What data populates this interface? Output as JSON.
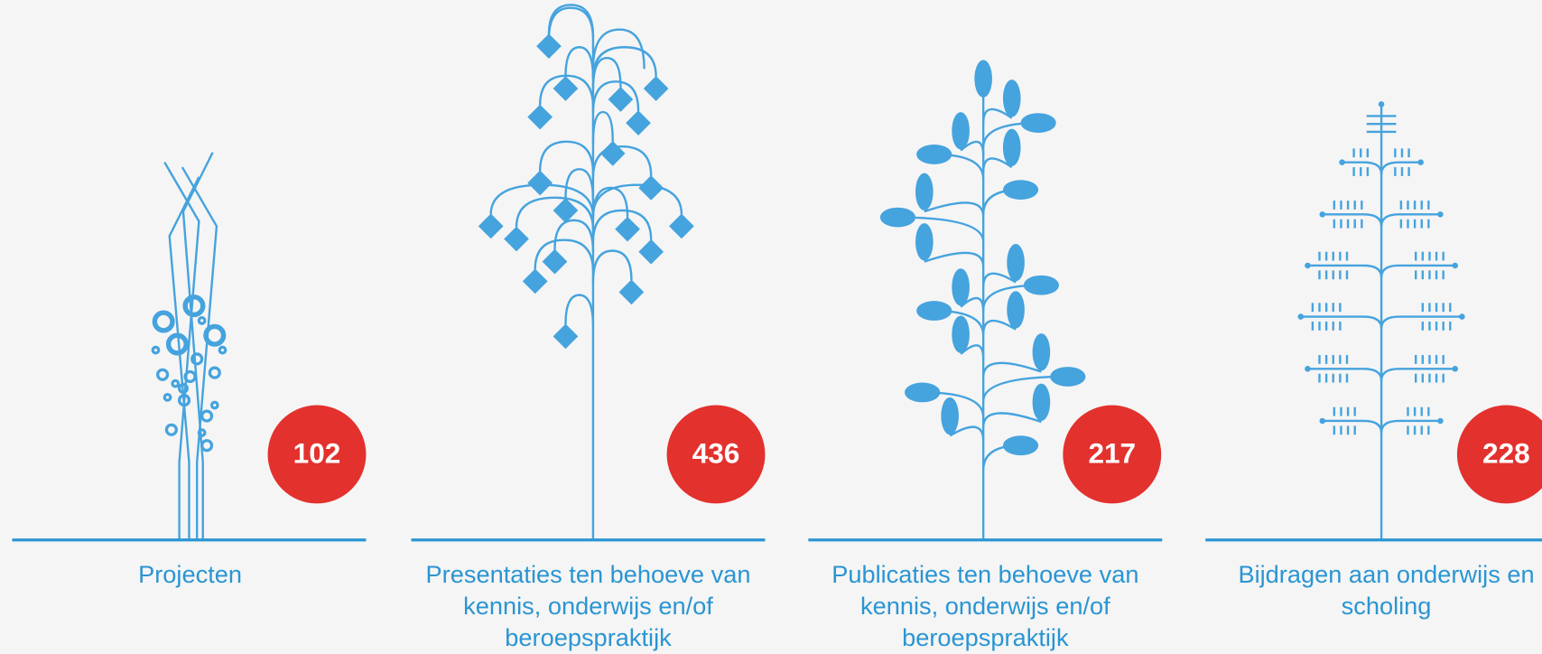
{
  "items": [
    {
      "number": 102,
      "caption": [
        "Projecten"
      ]
    },
    {
      "number": 436,
      "caption": [
        "Presentaties ten behoeve van",
        "kennis, onderwijs en/of",
        "beroepspraktijk"
      ]
    },
    {
      "number": 217,
      "caption": [
        "Publicaties ten behoeve van",
        "kennis, onderwijs en/of",
        "beroepspraktijk"
      ]
    },
    {
      "number": 228,
      "caption": [
        "Bijdragen aan onderwijs en",
        "scholing"
      ]
    }
  ]
}
